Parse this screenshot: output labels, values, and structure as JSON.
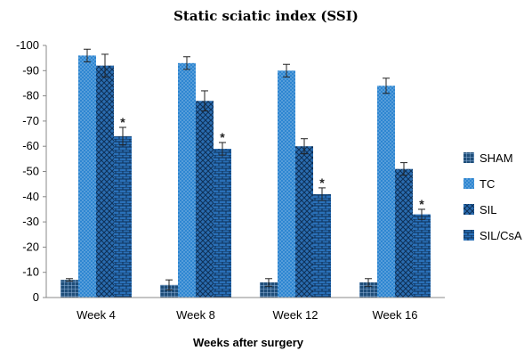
{
  "chart_data": {
    "type": "bar",
    "title": "Static sciatic index (SSI)",
    "xlabel": "Weeks after surgery",
    "ylabel": "",
    "ylim": [
      0,
      -100
    ],
    "yticks": [
      "-100",
      "-90",
      "-80",
      "-70",
      "-60",
      "-50",
      "-40",
      "-30",
      "-20",
      "-10",
      "0"
    ],
    "categories": [
      "Week 4",
      "Week 8",
      "Week 12",
      "Week 16"
    ],
    "legend_position": "right",
    "significance_marker": "*",
    "series": [
      {
        "name": "SHAM",
        "values": [
          -7,
          -5,
          -6,
          -6
        ],
        "errors": [
          0.5,
          2,
          1.5,
          1.5
        ],
        "color": "#1f4e79",
        "pattern": "grid",
        "significant": [
          false,
          false,
          false,
          false
        ]
      },
      {
        "name": "TC",
        "values": [
          -96,
          -93,
          -90,
          -84
        ],
        "errors": [
          2.5,
          2.5,
          2.5,
          3
        ],
        "color": "#2e86d1",
        "pattern": "dots",
        "significant": [
          false,
          false,
          false,
          false
        ]
      },
      {
        "name": "SIL",
        "values": [
          -92,
          -78,
          -60,
          -51
        ],
        "errors": [
          4.5,
          4,
          3,
          2.5
        ],
        "color": "#2a6cb0",
        "pattern": "crosshatch",
        "significant": [
          false,
          false,
          false,
          false
        ]
      },
      {
        "name": "SIL/CsA",
        "values": [
          -64,
          -59,
          -41,
          -33
        ],
        "errors": [
          3.5,
          2.5,
          2.5,
          2
        ],
        "color": "#2a70b8",
        "pattern": "brick",
        "significant": [
          true,
          true,
          true,
          true
        ]
      }
    ]
  }
}
